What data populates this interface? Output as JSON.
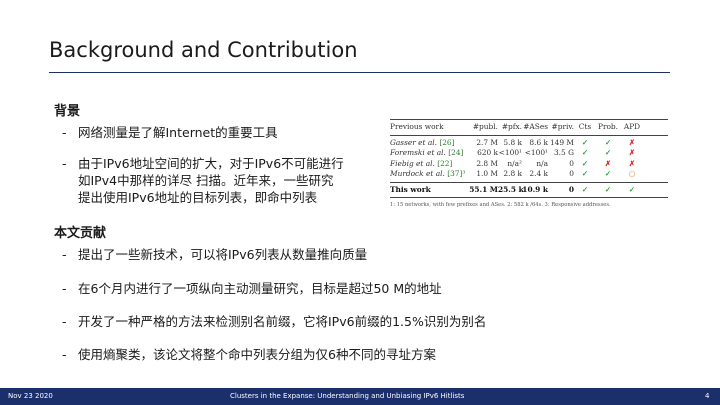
{
  "slide": {
    "title": "Background and Contribution",
    "background_heading": "背景",
    "background_bullets": [
      {
        "lines": [
          "网络测量是了解Internet的重要工具"
        ]
      },
      {
        "lines": [
          "由于IPv6地址空间的扩大，对于IPv6不可能进行",
          "如IPv4中那样的详尽 扫描。近年来，一些研究",
          "提出使用IPv6地址的目标列表，即命中列表"
        ]
      }
    ],
    "contribution_heading": "本文贡献",
    "contribution_bullets": [
      "提出了一些新技术，可以将IPv6列表从数量推向质量",
      "在6个月内进行了一项纵向主动测量研究，目标是超过50 M的地址",
      "开发了一种严格的方法来检测别名前缀，它将IPv6前缀的1.5%识别为别名",
      "使用熵聚类，该论文将整个命中列表分组为仅6种不同的寻址方案"
    ],
    "dash": "-"
  },
  "table": {
    "headers": [
      "Previous work",
      "#publ.",
      "#pfx.",
      "#ASes",
      "#priv.",
      "Cts",
      "Prob.",
      "APD"
    ],
    "rows": [
      {
        "work": "Gasser et al.",
        "ref": "[26]",
        "publ": "2.7 M",
        "pfx": "5.8 k",
        "ases": "8.6 k",
        "priv": "149 M",
        "cts": "✓",
        "prob": "✓",
        "apd": "✗"
      },
      {
        "work": "Foremski et al.",
        "ref": "[24]",
        "publ": "620 k",
        "pfx": "<100¹",
        "ases": "<100¹",
        "priv": "3.5 G",
        "cts": "✓",
        "prob": "✓",
        "apd": "✗"
      },
      {
        "work": "Fiebig et al.",
        "ref": "[22]",
        "publ": "2.8 M",
        "pfx": "n/a²",
        "ases": "n/a",
        "priv": "0",
        "cts": "✓",
        "prob": "✗",
        "apd": "✗"
      },
      {
        "work": "Murdock et al.",
        "ref": "[37]³",
        "publ": "1.0 M",
        "pfx": "2.8 k",
        "ases": "2.4 k",
        "priv": "0",
        "cts": "✓",
        "prob": "✓",
        "apd": "○"
      }
    ],
    "this_work": {
      "work": "This work",
      "publ": "55.1 M",
      "pfx": "25.5 k",
      "ases": "10.9 k",
      "priv": "0",
      "cts": "✓",
      "prob": "✓",
      "apd": "✓"
    },
    "footnote": "1: 15 networks, with few prefixes and ASes. 2: 582 k /64s. 3: Responsive addresses."
  },
  "footer": {
    "date": "Nov 23 2020",
    "paper_title": "Clusters in the Expanse: Understanding and Unbiasing IPv6 Hitlists",
    "page": "4"
  },
  "colors": {
    "footer_bg": "#1a2f6b",
    "check": "#2e9e3a",
    "cross": "#d62828",
    "circle": "#e08a00"
  }
}
